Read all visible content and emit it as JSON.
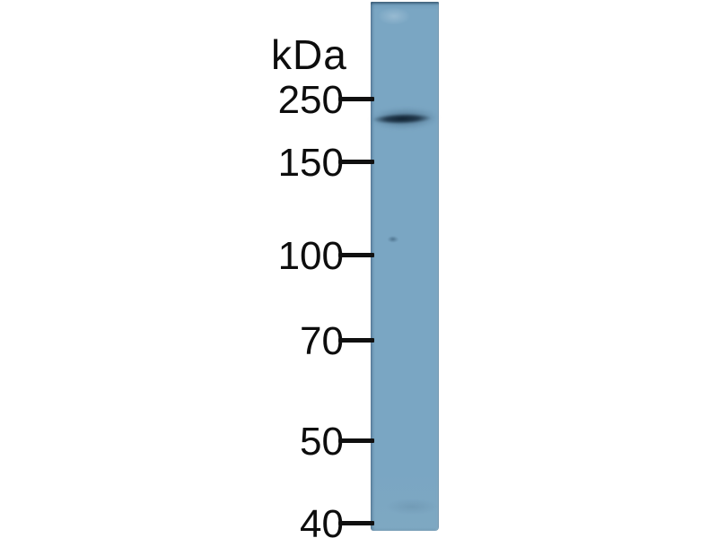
{
  "figure": {
    "kind": "western blot, single lane with molecular weight ladder",
    "unit_label": "kDa",
    "markers": [
      {
        "label": "250"
      },
      {
        "label": "150"
      },
      {
        "label": "100"
      },
      {
        "label": "70"
      },
      {
        "label": "50"
      },
      {
        "label": "40"
      }
    ],
    "band_note": "one dark protein band just below the 250 kDa tick",
    "artifact_note": "faint small speck inside lane near the 100 kDa tick",
    "colors": {
      "background": "#ffffff",
      "lane": "#7aa6c3",
      "lane_top_edge": "#6e9cba",
      "band": "#1c3347",
      "text": "#0d0d0d",
      "tick": "#101010"
    }
  }
}
